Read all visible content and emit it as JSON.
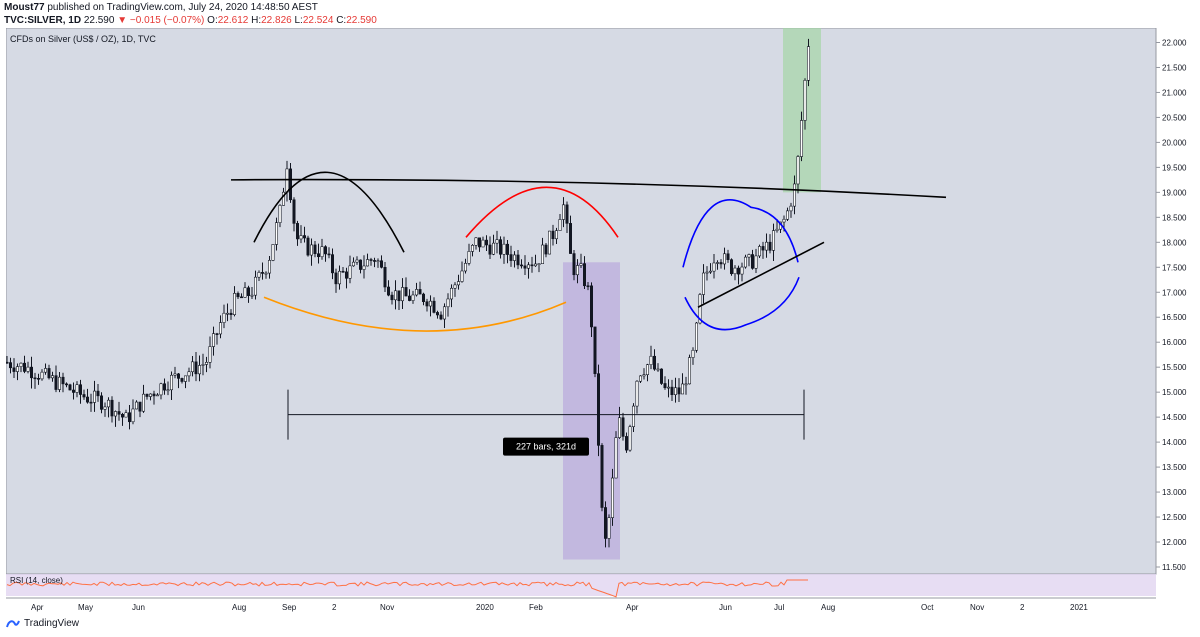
{
  "header": {
    "author": "Moust77",
    "published": "published on TradingView.com, July 24, 2020 14:48:50 AEST",
    "symbol": "TVC:SILVER, 1D",
    "last": "22.590",
    "change": "−0.015 (−0.07%)",
    "ohlc": [
      {
        "k": "O:",
        "v": "22.612"
      },
      {
        "k": "H:",
        "v": "22.826"
      },
      {
        "k": "L:",
        "v": "22.524"
      },
      {
        "k": "C:",
        "v": "22.590"
      }
    ]
  },
  "chart_data": {
    "type": "candlestick",
    "title": "CFDs on Silver (US$ / OZ), 1D, TVC",
    "y_ticks": [
      "22.000",
      "21.500",
      "21.000",
      "20.500",
      "20.000",
      "19.500",
      "19.000",
      "18.500",
      "18.000",
      "17.500",
      "17.000",
      "16.500",
      "16.000",
      "15.500",
      "15.000",
      "14.500",
      "14.000",
      "13.500",
      "13.000",
      "12.500",
      "12.000",
      "11.500"
    ],
    "ylim": [
      11.5,
      22.15
    ],
    "x_ticks": [
      "Apr",
      "May",
      "Jun",
      "Aug",
      "Sep",
      "2",
      "Nov",
      "2020",
      "Feb",
      "Apr",
      "Jun",
      "Jul",
      "Aug",
      "Oct",
      "Nov",
      "2",
      "2021"
    ],
    "price_path": [
      {
        "date": "2019-03",
        "close": 15.6
      },
      {
        "date": "2019-04",
        "close": 15.3
      },
      {
        "date": "2019-05",
        "close": 14.8
      },
      {
        "date": "2019-06",
        "close": 14.5
      },
      {
        "date": "2019-06-15",
        "close": 15.0
      },
      {
        "date": "2019-07",
        "close": 15.2
      },
      {
        "date": "2019-07-20",
        "close": 16.3
      },
      {
        "date": "2019-08",
        "close": 17.0
      },
      {
        "date": "2019-09-04",
        "close": 19.6
      },
      {
        "date": "2019-09-15",
        "close": 17.9
      },
      {
        "date": "2019-10",
        "close": 17.6
      },
      {
        "date": "2019-11",
        "close": 16.9
      },
      {
        "date": "2019-12",
        "close": 16.9
      },
      {
        "date": "2020-01",
        "close": 18.0
      },
      {
        "date": "2020-02-20",
        "close": 18.7
      },
      {
        "date": "2020-03-01",
        "close": 17.5
      },
      {
        "date": "2020-03-18",
        "close": 11.8
      },
      {
        "date": "2020-04",
        "close": 14.8
      },
      {
        "date": "2020-05",
        "close": 15.3
      },
      {
        "date": "2020-05-20",
        "close": 17.3
      },
      {
        "date": "2020-06",
        "close": 17.7
      },
      {
        "date": "2020-07-07",
        "close": 18.1
      },
      {
        "date": "2020-07-15",
        "close": 19.2
      },
      {
        "date": "2020-07-23",
        "close": 22.6
      }
    ],
    "annotations": {
      "measure_label": "227 bars, 321d",
      "indicator": "RSI (14, close)"
    },
    "colors": {
      "background": "#d6dae4",
      "candle": "#131722",
      "red_arc": "#ff0000",
      "orange_arc": "#ff9800",
      "blue_arc": "#0000ff",
      "purple_zone": "#b39ddb",
      "green_zone": "#a5d6a7",
      "rsi_line": "#ff7043"
    }
  },
  "footer": {
    "brand": "TradingView"
  }
}
